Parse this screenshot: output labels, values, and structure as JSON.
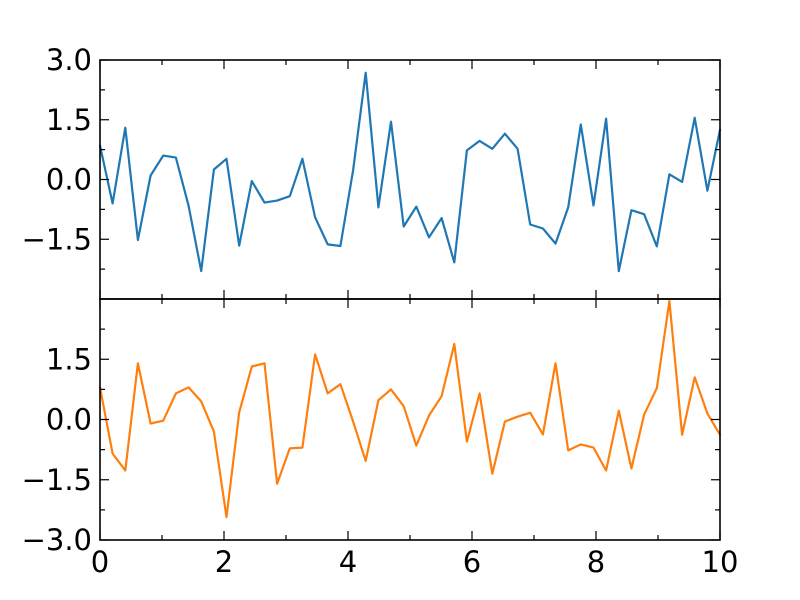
{
  "chart_data": [
    {
      "type": "line",
      "panel": "top",
      "xlim": [
        0,
        10
      ],
      "ylim": [
        -3.0,
        3.0
      ],
      "yticks": [
        3.0,
        1.5,
        0.0,
        -1.5
      ],
      "ytick_labels": [
        "3.0",
        "1.5",
        "0.0",
        "−1.5"
      ],
      "xticks": [
        0,
        2,
        4,
        6,
        8,
        10
      ],
      "xtick_labels": [],
      "grid": false,
      "series": [
        {
          "color": "#1f77b4",
          "x": [
            0,
            0.204,
            0.408,
            0.612,
            0.816,
            1.02,
            1.224,
            1.429,
            1.633,
            1.837,
            2.041,
            2.245,
            2.449,
            2.653,
            2.857,
            3.061,
            3.265,
            3.469,
            3.673,
            3.878,
            4.082,
            4.286,
            4.49,
            4.694,
            4.898,
            5.102,
            5.306,
            5.51,
            5.714,
            5.918,
            6.122,
            6.327,
            6.531,
            6.735,
            6.939,
            7.143,
            7.347,
            7.551,
            7.755,
            7.959,
            8.163,
            8.367,
            8.571,
            8.776,
            8.98,
            9.184,
            9.388,
            9.592,
            9.796,
            10.0
          ],
          "y": [
            0.85,
            -0.6,
            1.3,
            -1.52,
            0.1,
            0.6,
            0.55,
            -0.66,
            -2.3,
            0.25,
            0.52,
            -1.66,
            -0.04,
            -0.58,
            -0.53,
            -0.42,
            0.52,
            -0.95,
            -1.63,
            -1.67,
            0.23,
            2.68,
            -0.7,
            1.45,
            -1.18,
            -0.68,
            -1.45,
            -0.97,
            -2.08,
            0.73,
            0.97,
            0.77,
            1.15,
            0.77,
            -1.13,
            -1.23,
            -1.61,
            -0.7,
            1.38,
            -0.65,
            1.53,
            -2.3,
            -0.77,
            -0.87,
            -1.68,
            0.13,
            -0.06,
            1.55,
            -0.28,
            1.25
          ]
        }
      ]
    },
    {
      "type": "line",
      "panel": "bottom",
      "xlim": [
        0,
        10
      ],
      "ylim": [
        -3.0,
        3.0
      ],
      "yticks": [
        1.5,
        0.0,
        -1.5,
        -3.0
      ],
      "ytick_labels": [
        "1.5",
        "0.0",
        "−1.5",
        "−3.0"
      ],
      "xticks": [
        0,
        2,
        4,
        6,
        8,
        10
      ],
      "xtick_labels": [
        "0",
        "2",
        "4",
        "6",
        "8",
        "10"
      ],
      "grid": false,
      "series": [
        {
          "color": "#ff7f0e",
          "x": [
            0,
            0.204,
            0.408,
            0.612,
            0.816,
            1.02,
            1.224,
            1.429,
            1.633,
            1.837,
            2.041,
            2.245,
            2.449,
            2.653,
            2.857,
            3.061,
            3.265,
            3.469,
            3.673,
            3.878,
            4.082,
            4.286,
            4.49,
            4.694,
            4.898,
            5.102,
            5.306,
            5.51,
            5.714,
            5.918,
            6.122,
            6.327,
            6.531,
            6.735,
            6.939,
            7.143,
            7.347,
            7.551,
            7.755,
            7.959,
            8.163,
            8.367,
            8.571,
            8.776,
            8.98,
            9.184,
            9.388,
            9.592,
            9.796,
            10.0
          ],
          "y": [
            0.8,
            -0.85,
            -1.27,
            1.4,
            -0.1,
            -0.03,
            0.65,
            0.8,
            0.45,
            -0.3,
            -2.43,
            0.18,
            1.32,
            1.4,
            -1.6,
            -0.72,
            -0.7,
            1.62,
            0.65,
            0.88,
            -0.05,
            -1.03,
            0.48,
            0.75,
            0.33,
            -0.65,
            0.1,
            0.58,
            1.88,
            -0.55,
            0.65,
            -1.35,
            -0.05,
            0.07,
            0.17,
            -0.37,
            1.4,
            -0.77,
            -0.62,
            -0.7,
            -1.27,
            0.22,
            -1.22,
            0.12,
            0.78,
            2.95,
            -0.38,
            1.05,
            0.15,
            -0.38
          ]
        }
      ]
    }
  ]
}
